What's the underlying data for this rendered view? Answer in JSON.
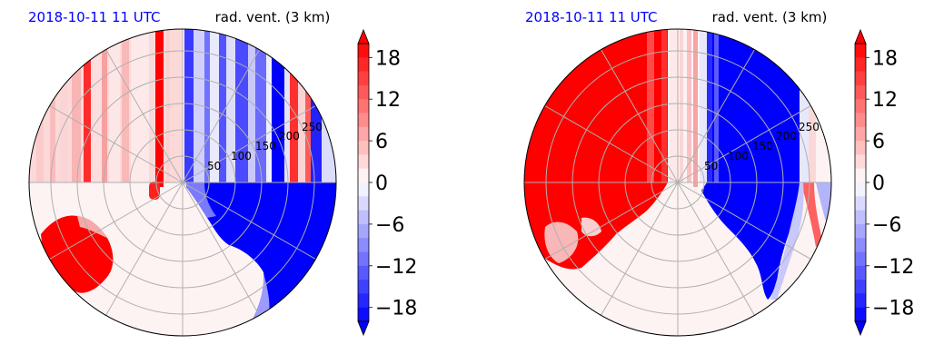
{
  "colors": {
    "positive": "#ff0000",
    "negative": "#0000ff",
    "neutral": "#fdf3f3",
    "date_text": "#0000ff",
    "title_text": "#000000",
    "grid": "#b0b0b0"
  },
  "chart_data": [
    {
      "type": "heatmap",
      "projection": "polar",
      "date_label": "2018-10-11 11 UTC",
      "title": "rad. vent. (3 km)",
      "radial_ticks": [
        "50",
        "100",
        "150",
        "200",
        "250"
      ],
      "rmax": 290,
      "grid": true,
      "colorbar": {
        "vmin": -20,
        "vmax": 20,
        "levels": 20,
        "ticks": [
          "18",
          "12",
          "6",
          "0",
          "−6",
          "−12",
          "−18"
        ],
        "tick_values": [
          18,
          12,
          6,
          0,
          -6,
          -12,
          -18
        ],
        "extend": "both"
      },
      "field_regions": [
        {
          "description": "west sector stripes",
          "az": [
            270,
            360
          ],
          "r": [
            0,
            290
          ],
          "value": 8
        },
        {
          "description": "north stripe",
          "az": [
            355,
            360
          ],
          "r": [
            0,
            290
          ],
          "value": 18
        },
        {
          "description": "north-northeast blue band",
          "az": [
            0,
            35
          ],
          "r": [
            30,
            290
          ],
          "value": -14
        },
        {
          "description": "northeast red stripe",
          "az": [
            35,
            45
          ],
          "r": [
            120,
            290
          ],
          "value": 18
        },
        {
          "description": "east blue sector",
          "az": [
            90,
            160
          ],
          "r": [
            20,
            290
          ],
          "value": -20
        },
        {
          "description": "southwest red patch",
          "az": [
            225,
            255
          ],
          "r": [
            120,
            260
          ],
          "value": 20
        },
        {
          "description": "south neutral",
          "az": [
            160,
            225
          ],
          "r": [
            0,
            290
          ],
          "value": 0
        }
      ]
    },
    {
      "type": "heatmap",
      "projection": "polar",
      "date_label": "2018-10-11 11 UTC",
      "title": "rad. vent. (3 km)",
      "radial_ticks": [
        "50",
        "100",
        "150",
        "200",
        "250"
      ],
      "rmax": 290,
      "grid": true,
      "colorbar": {
        "vmin": -20,
        "vmax": 20,
        "levels": 20,
        "ticks": [
          "18",
          "12",
          "6",
          "0",
          "−6",
          "−12",
          "−18"
        ],
        "tick_values": [
          18,
          12,
          6,
          0,
          -6,
          -12,
          -18
        ],
        "extend": "both"
      },
      "field_regions": [
        {
          "description": "west red sector",
          "az": [
            220,
            360
          ],
          "r": [
            0,
            290
          ],
          "value": 20
        },
        {
          "description": "north-northeast blue sector",
          "az": [
            5,
            80
          ],
          "r": [
            0,
            290
          ],
          "value": -20
        },
        {
          "description": "east blue sector",
          "az": [
            90,
            150
          ],
          "r": [
            0,
            290
          ],
          "value": -18
        },
        {
          "description": "south neutral",
          "az": [
            150,
            220
          ],
          "r": [
            0,
            290
          ],
          "value": 0
        }
      ]
    }
  ]
}
